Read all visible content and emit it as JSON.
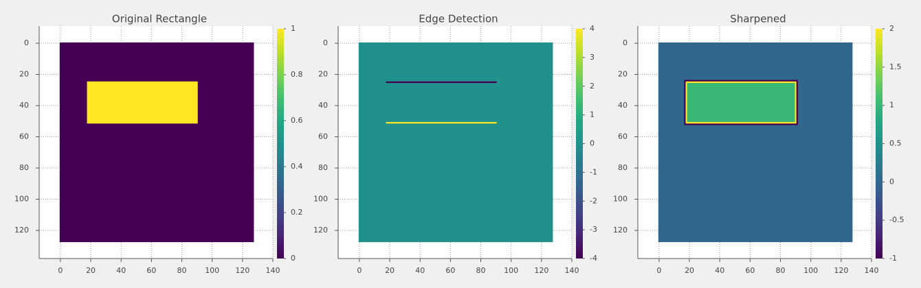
{
  "chart_data": [
    {
      "type": "heatmap",
      "title": "Original Rectangle",
      "colormap": "viridis",
      "grid": true,
      "xlim": [
        -14,
        140
      ],
      "ylim": [
        138,
        -11
      ],
      "xticks": [
        0,
        20,
        40,
        60,
        80,
        100,
        120,
        140
      ],
      "yticks": [
        0,
        20,
        40,
        60,
        80,
        100,
        120
      ],
      "regions": [
        {
          "x": [
            -0.5,
            127.5
          ],
          "y": [
            -0.5,
            127.5
          ],
          "value": 0
        },
        {
          "x": [
            17.5,
            90.5
          ],
          "y": [
            24.5,
            51.5
          ],
          "value": 1
        }
      ],
      "colorbar": {
        "lim": [
          0,
          1
        ],
        "ticks": [
          0,
          0.2,
          0.4,
          0.6,
          0.8,
          1
        ]
      }
    },
    {
      "type": "heatmap",
      "title": "Edge Detection",
      "colormap": "viridis",
      "grid": true,
      "xlim": [
        -14,
        140
      ],
      "ylim": [
        138,
        -11
      ],
      "xticks": [
        0,
        20,
        40,
        60,
        80,
        100,
        120,
        140
      ],
      "yticks": [
        0,
        20,
        40,
        60,
        80,
        100,
        120
      ],
      "regions": [
        {
          "x": [
            -0.5,
            127.5
          ],
          "y": [
            -0.5,
            127.5
          ],
          "value": 0
        },
        {
          "x": [
            17.5,
            90.5
          ],
          "y": [
            24.5,
            25.5
          ],
          "value": -4
        },
        {
          "x": [
            17.5,
            90.5
          ],
          "y": [
            50.5,
            51.5
          ],
          "value": 4
        }
      ],
      "colorbar": {
        "lim": [
          -4,
          4
        ],
        "ticks": [
          -4,
          -3,
          -2,
          -1,
          0,
          1,
          2,
          3,
          4
        ]
      }
    },
    {
      "type": "heatmap",
      "title": "Sharpened",
      "colormap": "viridis",
      "grid": true,
      "xlim": [
        -14,
        140
      ],
      "ylim": [
        138,
        -11
      ],
      "xticks": [
        0,
        20,
        40,
        60,
        80,
        100,
        120,
        140
      ],
      "yticks": [
        0,
        20,
        40,
        60,
        80,
        100,
        120
      ],
      "regions": [
        {
          "x": [
            -0.5,
            127.5
          ],
          "y": [
            -0.5,
            127.5
          ],
          "value": 0
        },
        {
          "x": [
            16.5,
            91.5
          ],
          "y": [
            23.5,
            52.5
          ],
          "value": -1
        },
        {
          "x": [
            17.5,
            90.5
          ],
          "y": [
            24.5,
            51.5
          ],
          "value": 2
        },
        {
          "x": [
            18.5,
            89.5
          ],
          "y": [
            25.5,
            50.5
          ],
          "value": 1
        }
      ],
      "colorbar": {
        "lim": [
          -1,
          2
        ],
        "ticks": [
          -1,
          -0.5,
          0,
          0.5,
          1,
          1.5,
          2
        ]
      }
    }
  ]
}
